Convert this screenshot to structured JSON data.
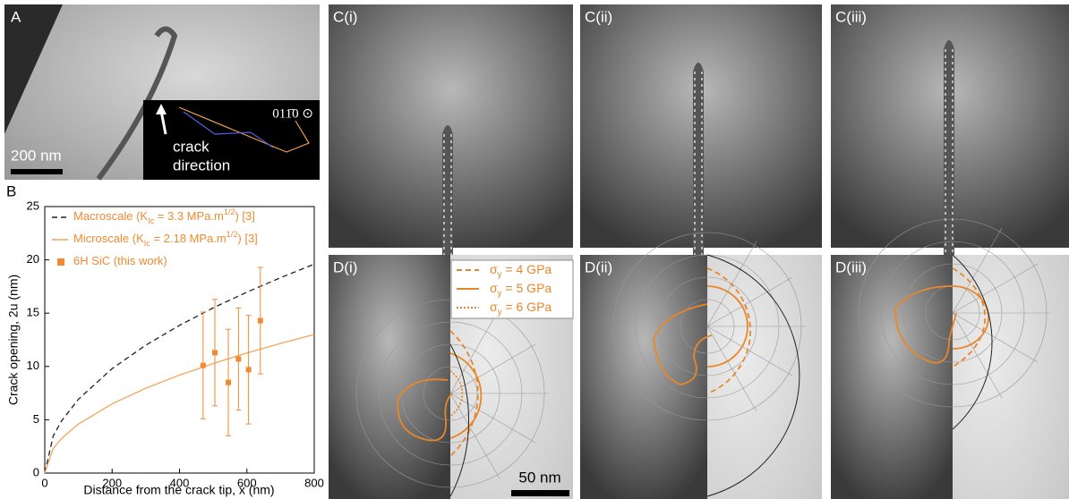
{
  "panels": {
    "a": {
      "label": "A",
      "scale_bar": "200 nm",
      "inset": {
        "crack": "crack",
        "direction": "direction",
        "zone_axis": "011̄0 ⊙"
      }
    },
    "c": [
      {
        "label": "C(i)"
      },
      {
        "label": "C(ii)"
      },
      {
        "label": "C(iii)"
      }
    ],
    "d": [
      {
        "label": "D(i)"
      },
      {
        "label": "D(ii)"
      },
      {
        "label": "D(iii)"
      }
    ],
    "scale_bar": "50 nm",
    "d_legend": [
      {
        "style": "dashed",
        "parts": [
          {
            "text": "σ"
          },
          {
            "sub": "y"
          },
          {
            "text": " = 4 GPa"
          }
        ]
      },
      {
        "style": "solid",
        "parts": [
          {
            "text": "σ"
          },
          {
            "sub": "y"
          },
          {
            "text": " = 5 GPa"
          }
        ]
      },
      {
        "style": "dotted",
        "parts": [
          {
            "text": "σ"
          },
          {
            "sub": "y"
          },
          {
            "text": " = 6 GPa"
          }
        ]
      }
    ]
  },
  "chart_data": {
    "type": "line",
    "label": "B",
    "xlabel": "Distance from the crack tip, x (nm)",
    "ylabel": "Crack opening, 2u (nm)",
    "xlim": [
      0,
      800
    ],
    "xticks": [
      0,
      200,
      400,
      600,
      800
    ],
    "ylim": [
      0,
      25
    ],
    "yticks": [
      0,
      5,
      10,
      15,
      20,
      25
    ],
    "legend": "upper left",
    "series": [
      {
        "name": [
          {
            "text": "Macroscale (K"
          },
          {
            "sub": "Ic"
          },
          {
            "text": " = 3.3 MPa.m"
          },
          {
            "sup": "1/2"
          },
          {
            "text": ") [3]"
          }
        ],
        "color": "#222222",
        "style": "dashed",
        "x": [
          0,
          25,
          50,
          100,
          200,
          300,
          400,
          500,
          600,
          700,
          800
        ],
        "values": [
          0,
          3.47,
          4.9,
          6.93,
          9.8,
          12.0,
          13.86,
          15.5,
          16.97,
          18.33,
          19.6
        ]
      },
      {
        "name": [
          {
            "text": "Microscale (K"
          },
          {
            "sub": "Ic"
          },
          {
            "text": " = 2.18 MPa.m"
          },
          {
            "sup": "1/2"
          },
          {
            "text": ") [3]"
          }
        ],
        "color": "#f2a65a",
        "style": "solid",
        "x": [
          0,
          25,
          50,
          100,
          200,
          300,
          400,
          500,
          600,
          700,
          800
        ],
        "values": [
          0,
          2.3,
          3.25,
          4.6,
          6.5,
          7.96,
          9.19,
          10.28,
          11.26,
          12.16,
          13
        ]
      },
      {
        "name": [
          {
            "text": "6H SiC (this work)"
          }
        ],
        "color": "#f08a30",
        "style": "errorbar",
        "x": [
          470,
          505,
          545,
          575,
          605,
          640
        ],
        "values": [
          10.1,
          11.3,
          8.5,
          10.7,
          9.7,
          14.3
        ],
        "errors": [
          5,
          5,
          5,
          4.8,
          5.1,
          5
        ]
      }
    ]
  }
}
